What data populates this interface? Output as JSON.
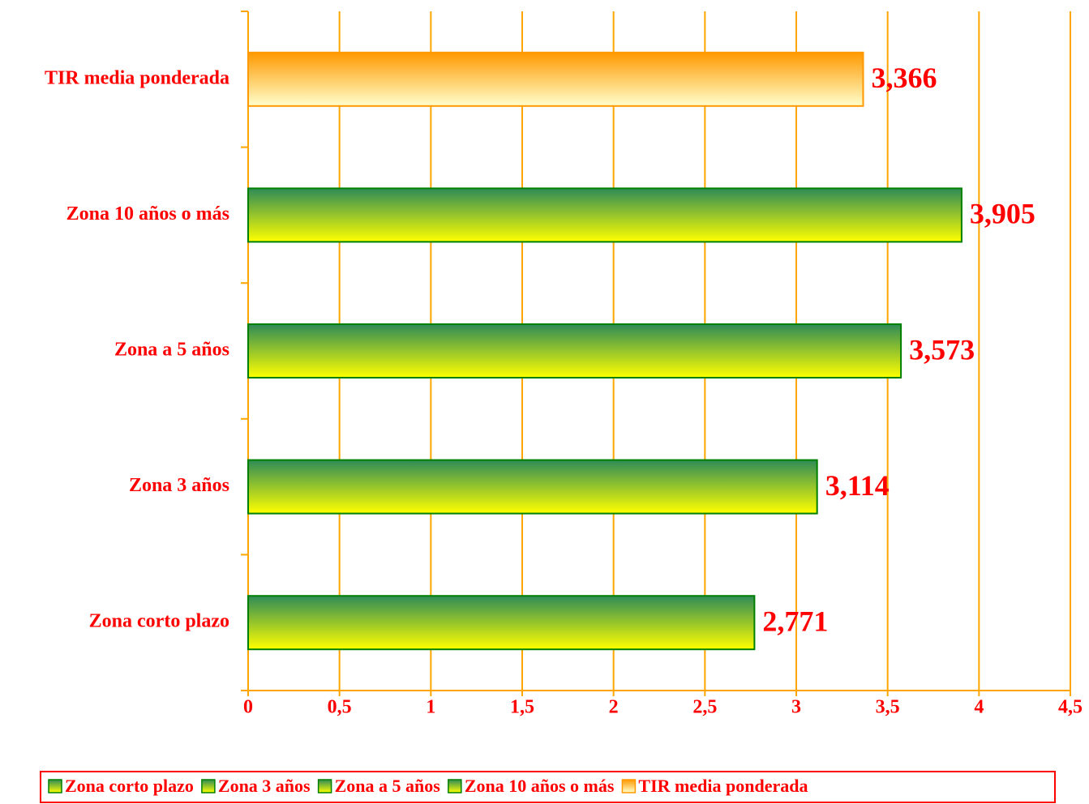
{
  "chart_data": {
    "type": "bar",
    "orientation": "horizontal",
    "categories": [
      "Zona corto plazo",
      "Zona 3 años",
      "Zona a 5 años",
      "Zona 10 años o más",
      "TIR media ponderada"
    ],
    "values": [
      2.771,
      3.114,
      3.573,
      3.905,
      3.366
    ],
    "value_labels": [
      "2,771",
      "3,114",
      "3,573",
      "3,905",
      "3,366"
    ],
    "colors": [
      [
        "#2e8b57",
        "#ffff00"
      ],
      [
        "#2e8b57",
        "#ffff00"
      ],
      [
        "#2e8b57",
        "#ffff00"
      ],
      [
        "#2e8b57",
        "#ffff00"
      ],
      [
        "#ff9900",
        "#ffffcc"
      ]
    ],
    "xlim": [
      0,
      4.5
    ],
    "xticks": [
      0,
      {
        "value": 0.5,
        "label": "0,5"
      },
      1,
      {
        "value": 1.5,
        "label": "1,5"
      },
      2,
      {
        "value": 2.5,
        "label": "2,5"
      },
      3,
      {
        "value": 3.5,
        "label": "3,5"
      },
      4,
      {
        "value": 4.5,
        "label": "4,5"
      }
    ],
    "grid": true,
    "legend": "bottom"
  }
}
